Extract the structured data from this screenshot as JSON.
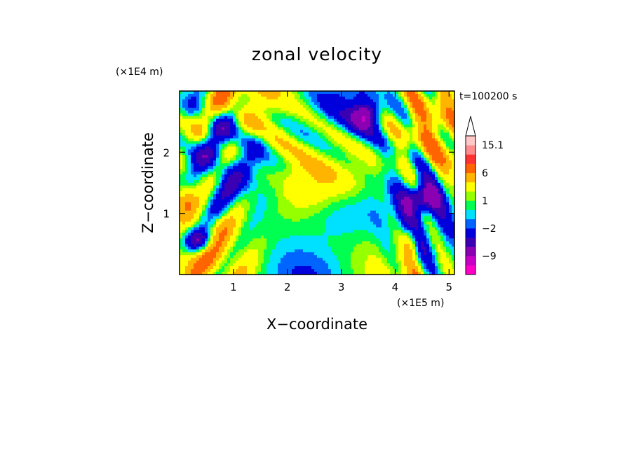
{
  "chart_data": {
    "type": "heatmap",
    "title": "zonal velocity",
    "xlabel": "X−coordinate",
    "ylabel": "Z−coordinate",
    "x_scale_label": "(×1E5 m)",
    "y_scale_label": "(×1E4 m)",
    "time_label": "t=100200 s",
    "xlim": [
      0,
      5.1
    ],
    "ylim": [
      0,
      3.0
    ],
    "x_ticks": [
      "1",
      "2",
      "3",
      "4",
      "5"
    ],
    "x_tick_values": [
      1,
      2,
      3,
      4,
      5
    ],
    "y_ticks": [
      "1",
      "2"
    ],
    "y_tick_values": [
      1,
      2
    ],
    "colorbar": {
      "tick_labels": [
        "15.1",
        "6",
        "1",
        "−2",
        "−9"
      ],
      "tick_values": [
        15.1,
        6,
        1,
        -2,
        -9
      ],
      "levels": [
        -15.1,
        -12,
        -9,
        -6,
        -4,
        -2,
        -1,
        0,
        1,
        2,
        4,
        6,
        9,
        12,
        15.1
      ],
      "colors": [
        "#ff00c8",
        "#c800c8",
        "#8c00b4",
        "#3c00b4",
        "#0000dc",
        "#0064ff",
        "#00e0ff",
        "#00ff50",
        "#96ff00",
        "#ffff00",
        "#ffb400",
        "#ff6400",
        "#ff3232",
        "#ff8c8c",
        "#ffc8c8"
      ],
      "extend": "max"
    }
  }
}
